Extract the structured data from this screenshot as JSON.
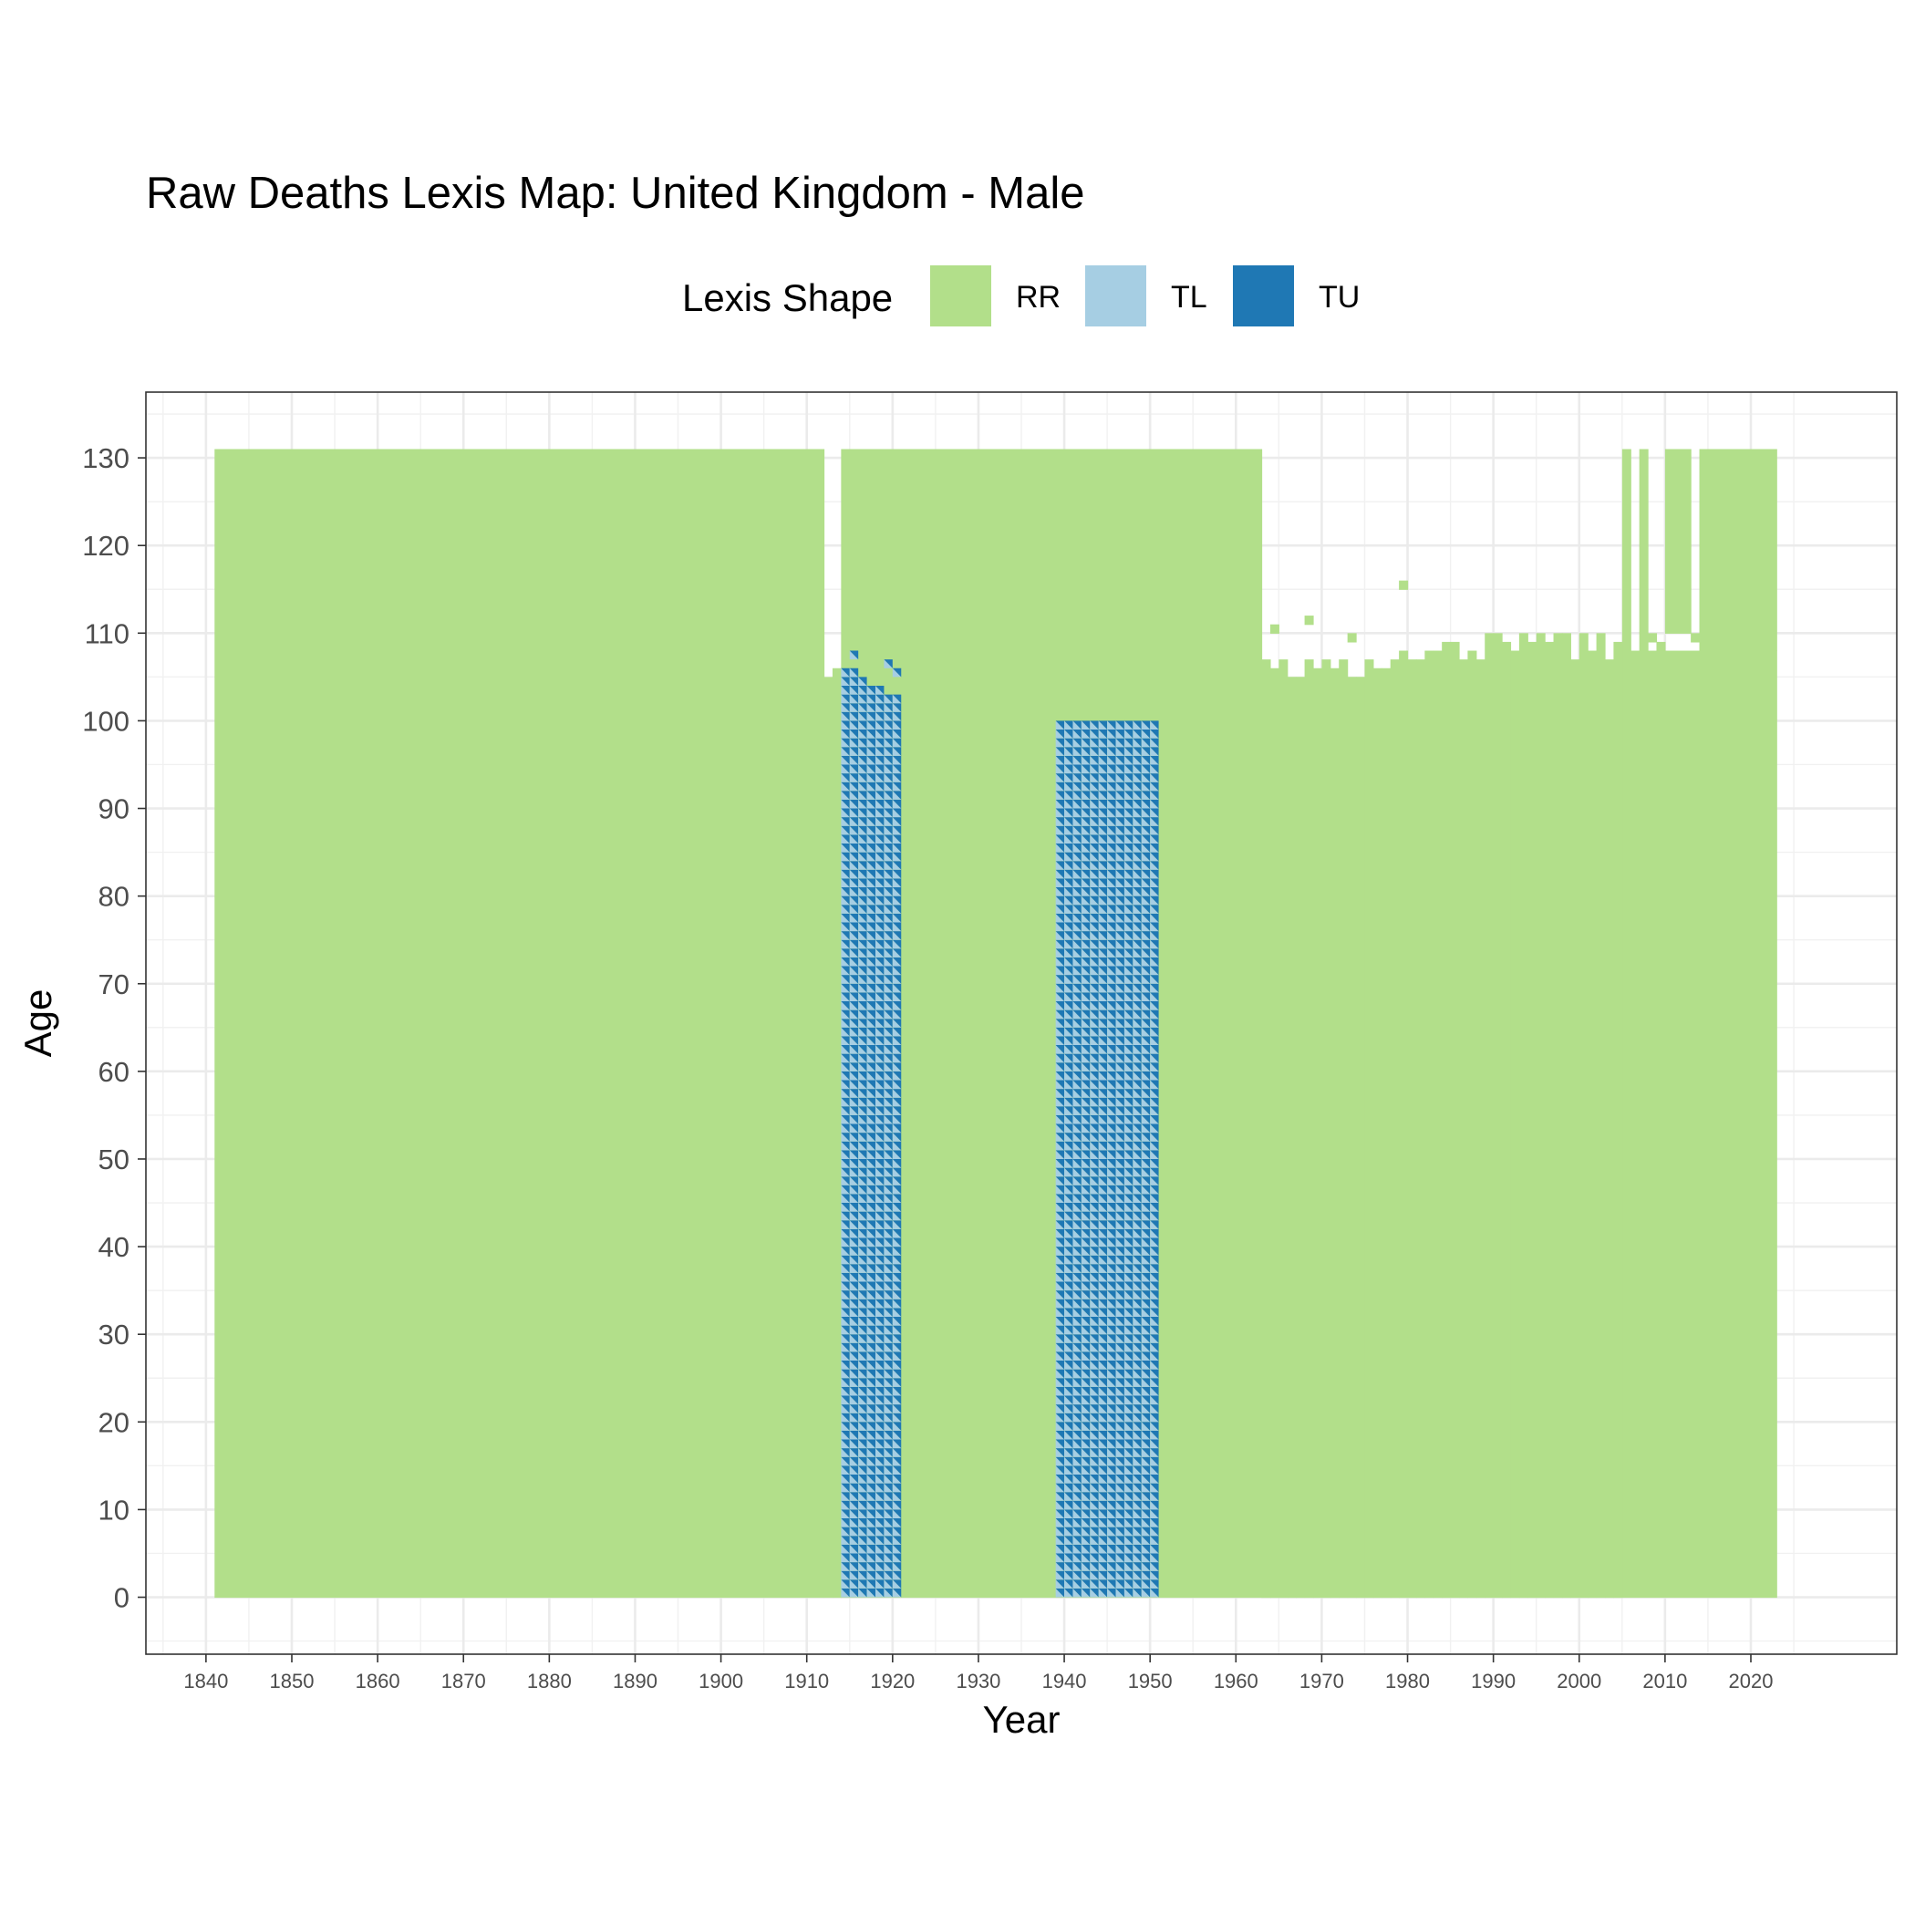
{
  "chart_data": {
    "type": "heatmap",
    "title": "Raw Deaths Lexis Map: United Kingdom - Male",
    "xlabel": "Year",
    "ylabel": "Age",
    "xlim": [
      1833,
      2037
    ],
    "ylim": [
      -6.5,
      137.5
    ],
    "x_ticks": [
      1840,
      1850,
      1860,
      1870,
      1880,
      1890,
      1900,
      1910,
      1920,
      1930,
      1940,
      1950,
      1960,
      1970,
      1980,
      1990,
      2000,
      2010,
      2020
    ],
    "y_ticks": [
      0,
      10,
      20,
      30,
      40,
      50,
      60,
      70,
      80,
      90,
      100,
      110,
      120,
      130
    ],
    "x_tick_labels": [
      "1840",
      "1850",
      "1860",
      "1870",
      "1880",
      "1890",
      "1900",
      "1910",
      "1920",
      "1930",
      "1940",
      "1950",
      "1960",
      "1970",
      "1980",
      "1990",
      "2000",
      "2010",
      "2020"
    ],
    "y_tick_labels": [
      "0",
      "10",
      "20",
      "30",
      "40",
      "50",
      "60",
      "70",
      "80",
      "90",
      "100",
      "110",
      "120",
      "130"
    ],
    "grid": true,
    "legend": {
      "title": "Lexis Shape",
      "position": "top",
      "entries": [
        {
          "label": "RR",
          "color": "#b2df8a"
        },
        {
          "label": "TL",
          "color": "#a6cee3"
        },
        {
          "label": "TU",
          "color": "#1f78b4"
        }
      ]
    },
    "rr_blocks": [
      {
        "years": [
          1841,
          1912
        ],
        "ages": [
          0,
          131
        ]
      },
      {
        "years": [
          1914,
          1963
        ],
        "ages": [
          0,
          131
        ]
      },
      {
        "years": [
          1963,
          2005
        ],
        "ages": [
          0,
          105
        ]
      },
      {
        "years": [
          2005,
          2023
        ],
        "ages": [
          0,
          108
        ]
      },
      {
        "years": [
          2005,
          2006
        ],
        "ages": [
          108,
          131
        ]
      },
      {
        "years": [
          2007,
          2008
        ],
        "ages": [
          108,
          131
        ]
      },
      {
        "years": [
          2010,
          2013
        ],
        "ages": [
          110,
          131
        ]
      },
      {
        "years": [
          2014,
          2023
        ],
        "ages": [
          108,
          131
        ]
      },
      {
        "years": [
          1912,
          1913
        ],
        "ages": [
          0,
          105
        ]
      },
      {
        "years": [
          1913,
          1914
        ],
        "ages": [
          0,
          106
        ]
      }
    ],
    "rr_top_steps": [
      {
        "year": 1963,
        "max_age": 107
      },
      {
        "year": 1964,
        "max_age": 106
      },
      {
        "year": 1965,
        "max_age": 107
      },
      {
        "year": 1966,
        "max_age": 105
      },
      {
        "year": 1967,
        "max_age": 105
      },
      {
        "year": 1968,
        "max_age": 107
      },
      {
        "year": 1969,
        "max_age": 106
      },
      {
        "year": 1970,
        "max_age": 107
      },
      {
        "year": 1971,
        "max_age": 106
      },
      {
        "year": 1972,
        "max_age": 107
      },
      {
        "year": 1973,
        "max_age": 105
      },
      {
        "year": 1974,
        "max_age": 105
      },
      {
        "year": 1975,
        "max_age": 107
      },
      {
        "year": 1976,
        "max_age": 106
      },
      {
        "year": 1977,
        "max_age": 106
      },
      {
        "year": 1978,
        "max_age": 107
      },
      {
        "year": 1979,
        "max_age": 108
      },
      {
        "year": 1980,
        "max_age": 107
      },
      {
        "year": 1981,
        "max_age": 107
      },
      {
        "year": 1982,
        "max_age": 108
      },
      {
        "year": 1983,
        "max_age": 108
      },
      {
        "year": 1984,
        "max_age": 109
      },
      {
        "year": 1985,
        "max_age": 109
      },
      {
        "year": 1986,
        "max_age": 107
      },
      {
        "year": 1987,
        "max_age": 108
      },
      {
        "year": 1988,
        "max_age": 107
      },
      {
        "year": 1989,
        "max_age": 110
      },
      {
        "year": 1990,
        "max_age": 110
      },
      {
        "year": 1991,
        "max_age": 109
      },
      {
        "year": 1992,
        "max_age": 108
      },
      {
        "year": 1993,
        "max_age": 110
      },
      {
        "year": 1994,
        "max_age": 109
      },
      {
        "year": 1995,
        "max_age": 110
      },
      {
        "year": 1996,
        "max_age": 109
      },
      {
        "year": 1997,
        "max_age": 110
      },
      {
        "year": 1998,
        "max_age": 110
      },
      {
        "year": 1999,
        "max_age": 107
      },
      {
        "year": 2000,
        "max_age": 110
      },
      {
        "year": 2001,
        "max_age": 108
      },
      {
        "year": 2002,
        "max_age": 110
      },
      {
        "year": 2003,
        "max_age": 107
      },
      {
        "year": 2004,
        "max_age": 109
      }
    ],
    "rr_isolated": [
      {
        "year": 1964,
        "age": 110
      },
      {
        "year": 1968,
        "age": 111
      },
      {
        "year": 1973,
        "age": 109
      },
      {
        "year": 1979,
        "age": 115
      },
      {
        "year": 2008,
        "age": 109
      },
      {
        "year": 2009,
        "age": 108
      },
      {
        "year": 2013,
        "age": 109
      }
    ],
    "triangle_blocks": [
      {
        "years": [
          1914,
          1921
        ],
        "ages": [
          0,
          103
        ],
        "tl_color": "#a6cee3",
        "tu_color": "#1f78b4"
      },
      {
        "years": [
          1939,
          1951
        ],
        "ages": [
          0,
          100
        ],
        "tl_color": "#a6cee3",
        "tu_color": "#1f78b4"
      }
    ],
    "triangle_extras": [
      {
        "year": 1914,
        "age": 103
      },
      {
        "year": 1914,
        "age": 104
      },
      {
        "year": 1914,
        "age": 105
      },
      {
        "year": 1915,
        "age": 103
      },
      {
        "year": 1915,
        "age": 104
      },
      {
        "year": 1915,
        "age": 105
      },
      {
        "year": 1915,
        "age": 107
      },
      {
        "year": 1916,
        "age": 103
      },
      {
        "year": 1916,
        "age": 104
      },
      {
        "year": 1917,
        "age": 103
      },
      {
        "year": 1918,
        "age": 103
      },
      {
        "year": 1919,
        "age": 106
      },
      {
        "year": 1920,
        "age": 105
      }
    ]
  }
}
